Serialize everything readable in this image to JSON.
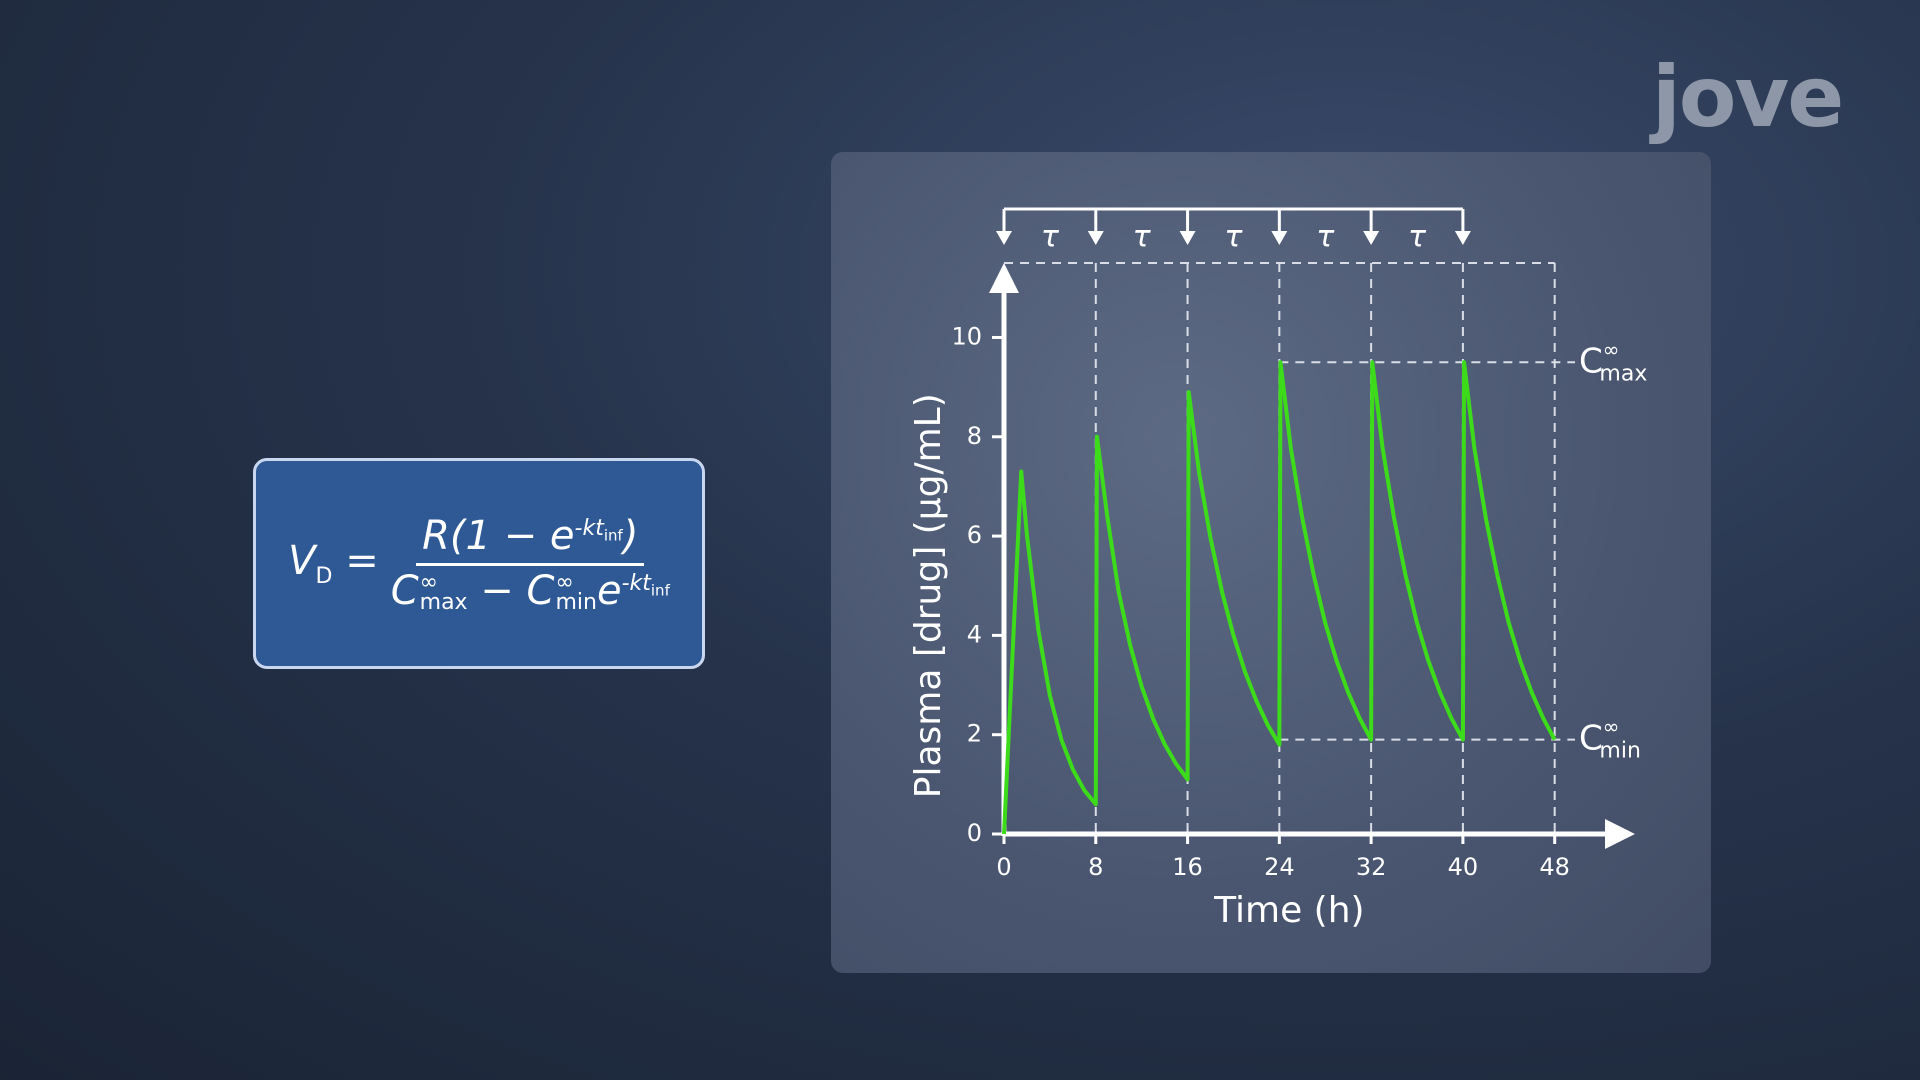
{
  "logo": "jove",
  "formula": {
    "lhs": "V",
    "lhs_sub": "D",
    "eq": "=",
    "numerator": {
      "pre": "R(1 − e",
      "exp": "-kt",
      "exp_sub": "inf",
      "post": ")"
    },
    "denominator": {
      "c1": "C",
      "c1_sup": "∞",
      "c1_sub": "max",
      "minus": "− C",
      "c2_sup": "∞",
      "c2_sub": "min",
      "e": "e",
      "exp": "-kt",
      "exp_sub": "inf"
    }
  },
  "chart_data": {
    "type": "line",
    "y_label": "Plasma [drug] (μg/mL)",
    "x_label": "Time (h)",
    "xlim": [
      0,
      55
    ],
    "ylim": [
      0,
      11.5
    ],
    "xticks": [
      0,
      8,
      16,
      24,
      32,
      40,
      48
    ],
    "yticks": [
      0,
      2,
      4,
      6,
      8,
      10
    ],
    "dose_times": [
      0,
      8,
      16,
      24,
      32,
      40
    ],
    "interval_labels": [
      "τ",
      "τ",
      "τ",
      "τ",
      "τ"
    ],
    "reference_lines": [
      {
        "value": 9.5,
        "base": "C",
        "sup": "∞",
        "sub": "max"
      },
      {
        "value": 1.9,
        "base": "C",
        "sup": "∞",
        "sub": "min"
      }
    ],
    "x": [
      0,
      1.5,
      2,
      3,
      4,
      5,
      6,
      7,
      8,
      8.1,
      9,
      10,
      11,
      12,
      13,
      14,
      15,
      16,
      16.1,
      17,
      18,
      19,
      20,
      21,
      22,
      23,
      24,
      24.1,
      25,
      26,
      27,
      28,
      29,
      30,
      31,
      32,
      32.1,
      33,
      34,
      35,
      36,
      37,
      38,
      39,
      40,
      40.1,
      41,
      42,
      43,
      44,
      45,
      46,
      47,
      48
    ],
    "series": [
      {
        "color": "#3ddc1a",
        "values": [
          0,
          7.3,
          6.02,
          4.1,
          2.79,
          1.9,
          1.3,
          0.88,
          0.6,
          8.0,
          6.4,
          4.87,
          3.8,
          2.97,
          2.32,
          1.81,
          1.41,
          1.1,
          8.9,
          7.29,
          5.96,
          4.88,
          4.0,
          3.27,
          2.68,
          2.19,
          1.8,
          9.5,
          7.77,
          6.36,
          5.21,
          4.25,
          3.48,
          2.85,
          2.33,
          1.9,
          9.5,
          7.77,
          6.36,
          5.21,
          4.25,
          3.48,
          2.85,
          2.33,
          1.9,
          9.5,
          7.77,
          6.36,
          5.21,
          4.25,
          3.48,
          2.85,
          2.33,
          1.9
        ]
      }
    ]
  }
}
